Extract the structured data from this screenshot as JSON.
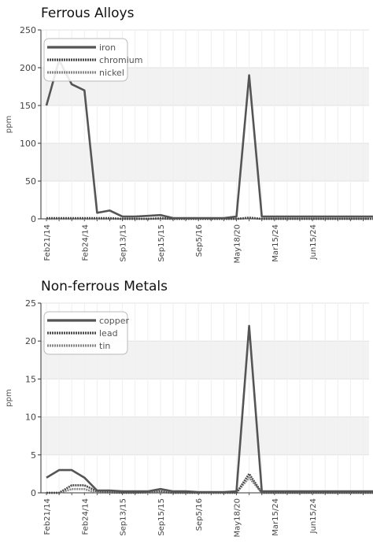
{
  "chart_data": [
    {
      "type": "line",
      "title": "Ferrous Alloys",
      "ylabel": "ppm",
      "xlabel": "",
      "ylim": [
        0,
        250
      ],
      "yticks": [
        0,
        50,
        100,
        150,
        200,
        250
      ],
      "grid": true,
      "legend_position": "top-left",
      "x": [
        0,
        1,
        2,
        3,
        4,
        5,
        6,
        7,
        8,
        9,
        10,
        11,
        12,
        13,
        14,
        15,
        16,
        17,
        18,
        19,
        20,
        21,
        22,
        23,
        24,
        25,
        26
      ],
      "xtick_labels": [
        {
          "index": 0,
          "label": "Feb21/14"
        },
        {
          "index": 3,
          "label": "Feb24/14"
        },
        {
          "index": 6,
          "label": "Sep13/15"
        },
        {
          "index": 9,
          "label": "Sep15/15"
        },
        {
          "index": 12,
          "label": "Sep5/16"
        },
        {
          "index": 15,
          "label": "May18/20"
        },
        {
          "index": 18,
          "label": "Mar15/24"
        },
        {
          "index": 21,
          "label": "Jun15/24"
        }
      ],
      "series": [
        {
          "name": "iron",
          "color": "#555555",
          "style": "solid",
          "values": [
            150,
            210,
            178,
            170,
            8,
            11,
            3,
            3,
            4,
            5,
            1,
            1,
            1,
            1,
            1,
            3,
            190,
            3,
            3,
            3,
            3,
            3,
            3,
            3,
            3,
            3,
            3
          ]
        },
        {
          "name": "chromium",
          "color": "#4a4a4a",
          "style": "dotted",
          "values": [
            1,
            1,
            1,
            1,
            1,
            1,
            0,
            0,
            0,
            1,
            0,
            0,
            0,
            0,
            0,
            0,
            1,
            0,
            0,
            0,
            0,
            0,
            0,
            0,
            0,
            0,
            0
          ]
        },
        {
          "name": "nickel",
          "color": "#888888",
          "style": "dotted",
          "values": [
            0,
            0,
            0,
            0,
            0,
            0,
            0,
            0,
            0,
            0,
            0,
            0,
            0,
            0,
            0,
            0,
            2,
            0,
            0,
            0,
            0,
            0,
            0,
            0,
            0,
            0,
            0
          ]
        }
      ]
    },
    {
      "type": "line",
      "title": "Non-ferrous Metals",
      "ylabel": "ppm",
      "xlabel": "",
      "ylim": [
        0,
        25
      ],
      "yticks": [
        0,
        5,
        10,
        15,
        20,
        25
      ],
      "grid": true,
      "legend_position": "top-left",
      "x": [
        0,
        1,
        2,
        3,
        4,
        5,
        6,
        7,
        8,
        9,
        10,
        11,
        12,
        13,
        14,
        15,
        16,
        17,
        18,
        19,
        20,
        21,
        22,
        23,
        24,
        25,
        26
      ],
      "xtick_labels": [
        {
          "index": 0,
          "label": "Feb21/14"
        },
        {
          "index": 3,
          "label": "Feb24/14"
        },
        {
          "index": 6,
          "label": "Sep13/15"
        },
        {
          "index": 9,
          "label": "Sep15/15"
        },
        {
          "index": 12,
          "label": "Sep5/16"
        },
        {
          "index": 15,
          "label": "May18/20"
        },
        {
          "index": 18,
          "label": "Mar15/24"
        },
        {
          "index": 21,
          "label": "Jun15/24"
        }
      ],
      "series": [
        {
          "name": "copper",
          "color": "#555555",
          "style": "solid",
          "values": [
            2,
            3,
            3,
            2,
            0.3,
            0.3,
            0.2,
            0.2,
            0.2,
            0.5,
            0.2,
            0.2,
            0.1,
            0.1,
            0.1,
            0.2,
            22,
            0.2,
            0.2,
            0.2,
            0.2,
            0.2,
            0.2,
            0.2,
            0.2,
            0.2,
            0.2
          ]
        },
        {
          "name": "lead",
          "color": "#4a4a4a",
          "style": "dotted",
          "values": [
            0,
            0,
            1,
            1,
            0.2,
            0.1,
            0,
            0,
            0.1,
            0.2,
            0,
            0,
            0,
            0,
            0,
            0,
            2.5,
            0,
            0,
            0,
            0,
            0,
            0,
            0,
            0,
            0,
            0
          ]
        },
        {
          "name": "tin",
          "color": "#888888",
          "style": "dotted",
          "values": [
            0,
            0,
            0.5,
            0.5,
            0,
            0,
            0,
            0,
            0,
            0,
            0,
            0,
            0,
            0,
            0,
            0,
            2,
            0,
            0,
            0,
            0,
            0,
            0,
            0,
            0,
            0,
            0
          ]
        }
      ]
    }
  ]
}
